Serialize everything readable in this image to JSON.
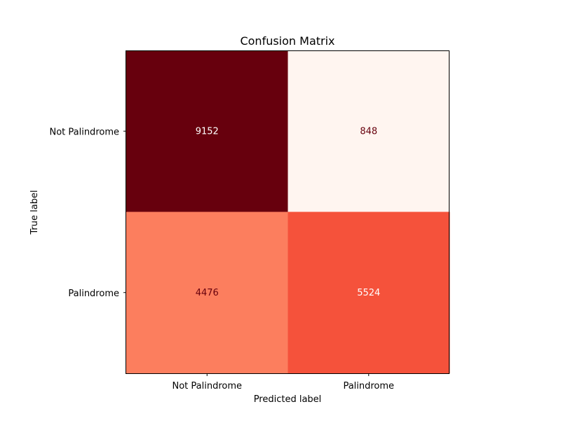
{
  "chart_data": {
    "type": "heatmap",
    "title": "Confusion Matrix",
    "xlabel": "Predicted label",
    "ylabel": "True label",
    "x_categories": [
      "Not Palindrome",
      "Palindrome"
    ],
    "y_categories": [
      "Not Palindrome",
      "Palindrome"
    ],
    "values": [
      [
        9152,
        848
      ],
      [
        4476,
        5524
      ]
    ],
    "colormap": "Reds",
    "color_range": [
      848,
      9152
    ],
    "grid": false,
    "colors": {
      "max": "#67000d",
      "min": "#fff5f0",
      "text_dark": "#67000d",
      "text_light": "#ffffff"
    }
  }
}
